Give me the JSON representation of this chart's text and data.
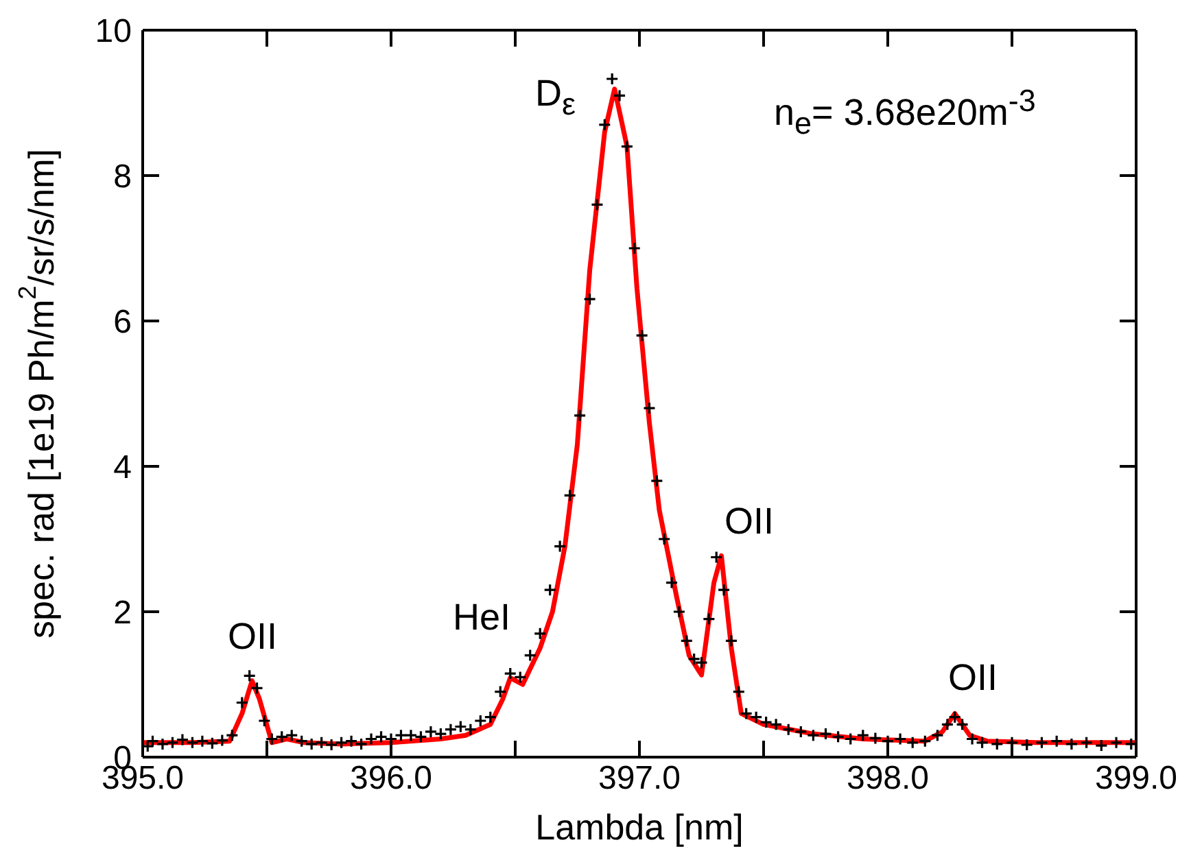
{
  "chart_data": {
    "type": "scatter",
    "xlabel": "Lambda [nm]",
    "ylabel": "spec. rad [1e19 Ph/m$^{2}$/sr/s/nm]",
    "xlim": [
      395,
      399
    ],
    "xticks": [
      {
        "value": 395,
        "label": "395.0"
      },
      {
        "value": 395.5,
        "label": null
      },
      {
        "value": 396,
        "label": "396.0"
      },
      {
        "value": 396.5,
        "label": null
      },
      {
        "value": 397,
        "label": "397.0"
      },
      {
        "value": 397.5,
        "label": null
      },
      {
        "value": 398,
        "label": "398.0"
      },
      {
        "value": 398.5,
        "label": null
      },
      {
        "value": 399,
        "label": "399.0"
      }
    ],
    "ylim": [
      0,
      10
    ],
    "yticks": [
      0,
      2,
      4,
      6,
      8,
      10
    ],
    "series": [
      {
        "color": "#000000",
        "marker": "cross",
        "x": [
          395.02,
          395.04,
          395.08,
          395.12,
          395.16,
          395.2,
          395.24,
          395.28,
          395.32,
          395.36,
          395.4,
          395.43,
          395.46,
          395.49,
          395.52,
          395.56,
          395.6,
          395.64,
          395.68,
          395.72,
          395.76,
          395.8,
          395.84,
          395.88,
          395.92,
          395.96,
          396.0,
          396.04,
          396.08,
          396.12,
          396.16,
          396.2,
          396.24,
          396.28,
          396.32,
          396.36,
          396.4,
          396.44,
          396.48,
          396.52,
          396.56,
          396.6,
          396.64,
          396.68,
          396.72,
          396.76,
          396.8,
          396.83,
          396.86,
          396.89,
          396.92,
          396.95,
          396.98,
          397.01,
          397.04,
          397.07,
          397.1,
          397.13,
          397.16,
          397.19,
          397.22,
          397.25,
          397.28,
          397.31,
          397.34,
          397.37,
          397.4,
          397.43,
          397.47,
          397.51,
          397.55,
          397.6,
          397.65,
          397.7,
          397.75,
          397.8,
          397.85,
          397.9,
          397.95,
          398.0,
          398.05,
          398.1,
          398.15,
          398.2,
          398.24,
          398.27,
          398.3,
          398.34,
          398.38,
          398.44,
          398.5,
          398.56,
          398.62,
          398.68,
          398.74,
          398.8,
          398.86,
          398.92,
          398.98
        ],
        "values": [
          0.15,
          0.22,
          0.18,
          0.2,
          0.24,
          0.2,
          0.22,
          0.19,
          0.23,
          0.3,
          0.75,
          1.12,
          0.95,
          0.5,
          0.25,
          0.28,
          0.3,
          0.22,
          0.18,
          0.2,
          0.17,
          0.2,
          0.22,
          0.18,
          0.25,
          0.28,
          0.25,
          0.3,
          0.3,
          0.28,
          0.35,
          0.32,
          0.38,
          0.42,
          0.38,
          0.5,
          0.55,
          0.9,
          1.15,
          1.1,
          1.4,
          1.7,
          2.3,
          2.9,
          3.6,
          4.7,
          6.3,
          7.6,
          8.7,
          9.33,
          9.1,
          8.4,
          7.0,
          5.8,
          4.8,
          3.8,
          3.0,
          2.4,
          2.0,
          1.6,
          1.35,
          1.3,
          1.9,
          2.75,
          2.3,
          1.6,
          0.9,
          0.6,
          0.55,
          0.48,
          0.45,
          0.38,
          0.35,
          0.3,
          0.32,
          0.28,
          0.25,
          0.3,
          0.26,
          0.22,
          0.25,
          0.2,
          0.22,
          0.3,
          0.45,
          0.55,
          0.45,
          0.25,
          0.2,
          0.18,
          0.2,
          0.17,
          0.2,
          0.22,
          0.18,
          0.2,
          0.16,
          0.2,
          0.18
        ]
      },
      {
        "type": "line",
        "color": "#ff0000",
        "marker": "none",
        "line_style": "solid",
        "x": [
          395.0,
          395.2,
          395.35,
          395.4,
          395.44,
          395.47,
          395.52,
          395.58,
          395.65,
          395.8,
          396.0,
          396.2,
          396.3,
          396.4,
          396.45,
          396.48,
          396.53,
          396.6,
          396.65,
          396.7,
          396.75,
          396.8,
          396.86,
          396.9,
          396.95,
          396.99,
          397.04,
          397.08,
          397.15,
          397.2,
          397.25,
          397.3,
          397.33,
          397.37,
          397.41,
          397.5,
          397.7,
          397.9,
          398.15,
          398.22,
          398.27,
          398.33,
          398.4,
          398.6,
          399.0
        ],
        "values": [
          0.2,
          0.2,
          0.22,
          0.6,
          1.05,
          0.8,
          0.2,
          0.25,
          0.2,
          0.18,
          0.2,
          0.25,
          0.3,
          0.45,
          0.8,
          1.09,
          1.0,
          1.5,
          2.0,
          2.9,
          4.3,
          6.7,
          8.6,
          9.19,
          8.4,
          6.45,
          4.6,
          3.4,
          2.2,
          1.4,
          1.13,
          2.4,
          2.77,
          1.5,
          0.6,
          0.45,
          0.32,
          0.25,
          0.22,
          0.35,
          0.6,
          0.3,
          0.22,
          0.2,
          0.2
        ]
      }
    ],
    "annotations": [
      "OII",
      "HeI",
      "D$_{ε}$",
      "OII",
      "OII",
      "n$_{e}$= 3.68e20m$^{-3}$"
    ]
  }
}
